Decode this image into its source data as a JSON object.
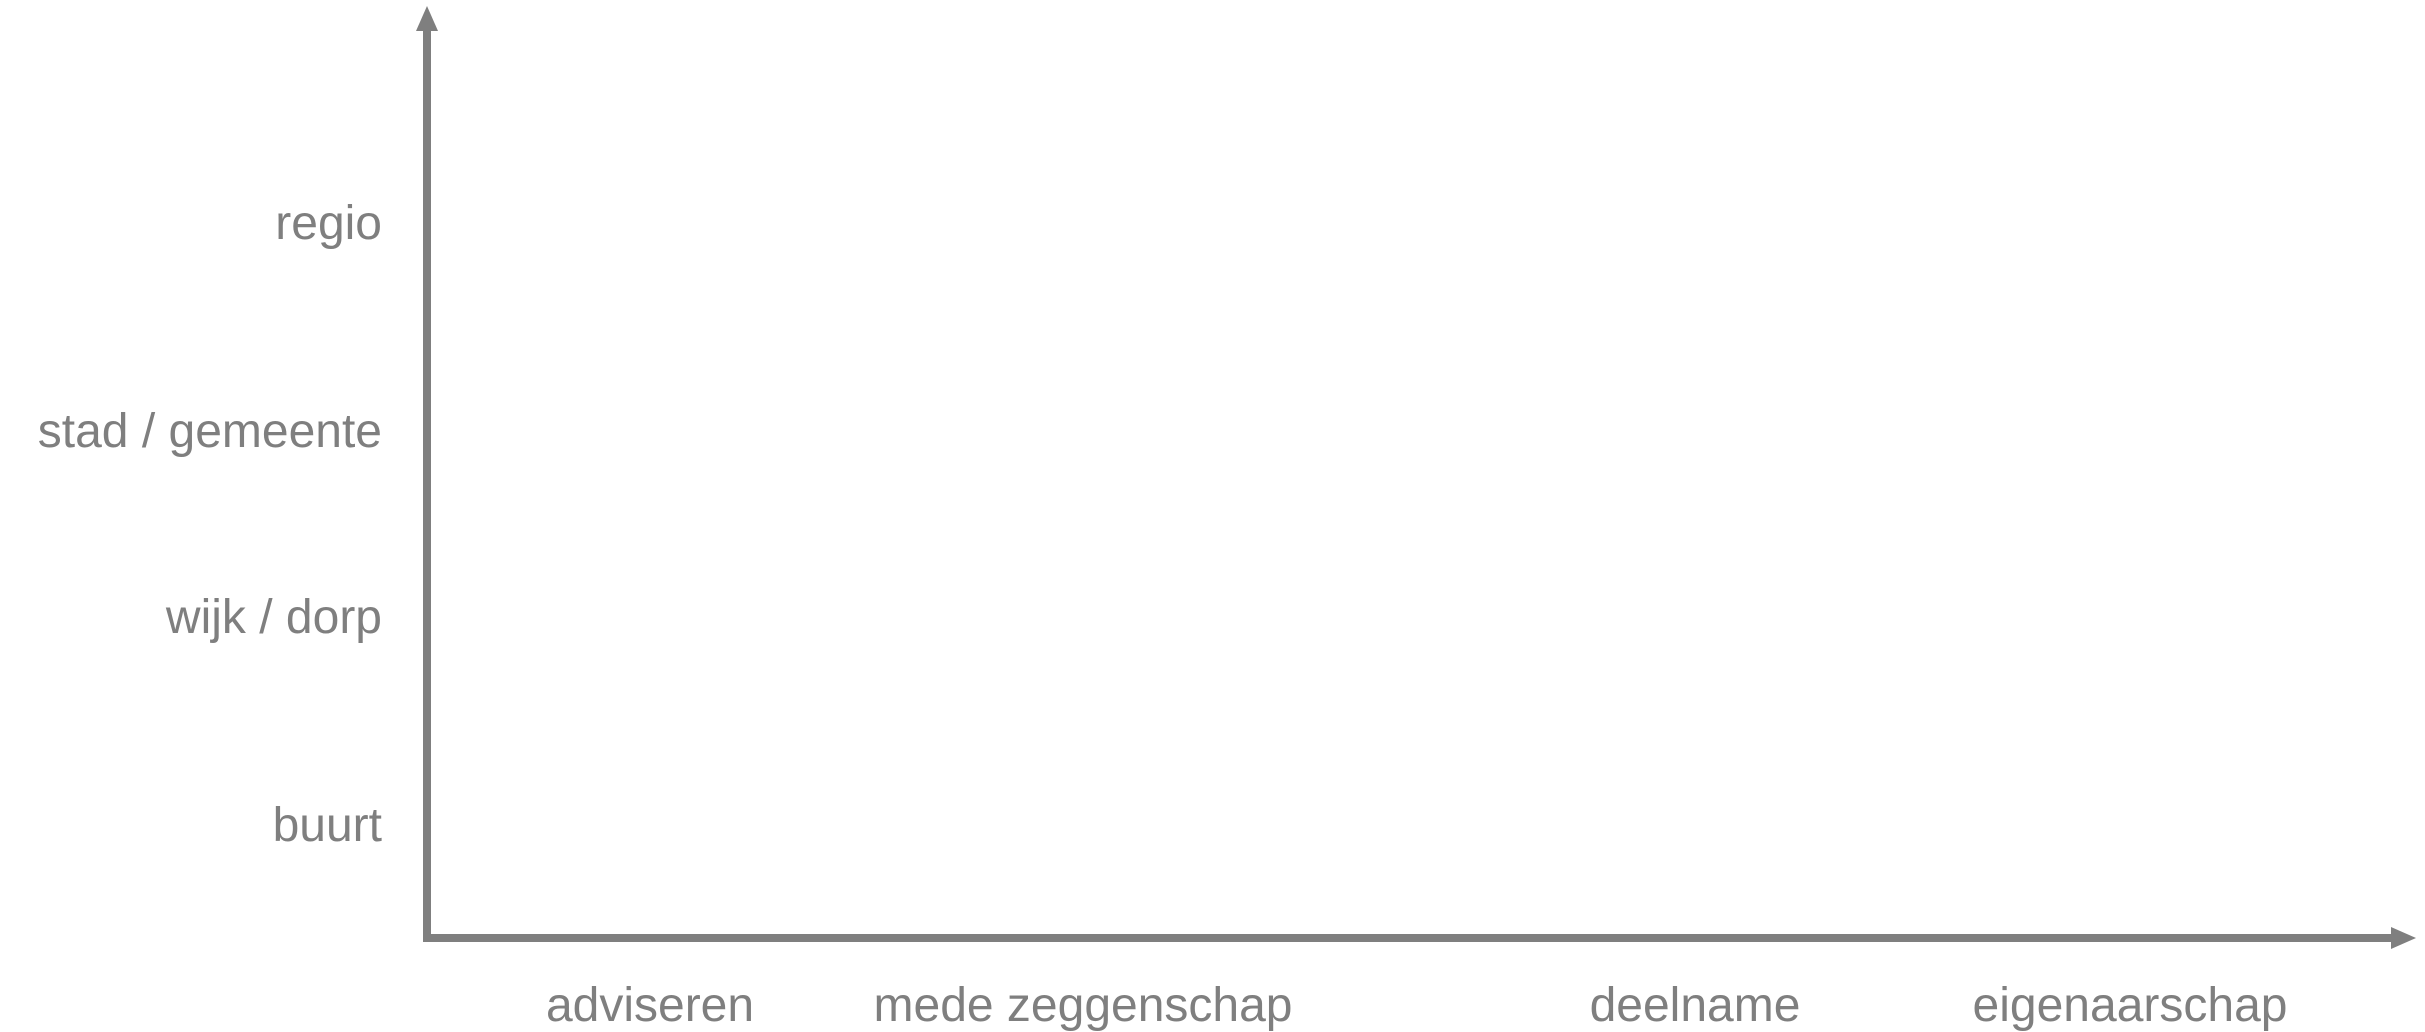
{
  "colors": {
    "axis": "#7f7f7f",
    "text": "#7f7f7f",
    "background": "#ffffff"
  },
  "y_axis": {
    "labels": [
      "regio",
      "stad / gemeente",
      "wijk / dorp",
      "buurt"
    ]
  },
  "x_axis": {
    "labels": [
      "adviseren",
      "mede zeggenschap",
      "deelname",
      "eigenaarschap"
    ]
  }
}
